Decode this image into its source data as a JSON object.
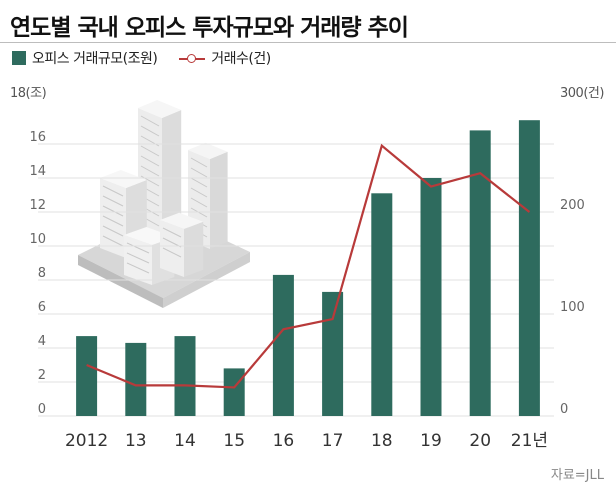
{
  "title": "연도별 국내 오피스 투자규모와 거래량 추이",
  "source": "자료=JLL",
  "colors": {
    "bar": "#2e6b5e",
    "line": "#b83a3a",
    "grid": "#e1e1e1",
    "tick_text": "#666666",
    "x_tick_text": "#333333"
  },
  "chart_data": {
    "type": "bar",
    "categories": [
      "2012",
      "13",
      "14",
      "15",
      "16",
      "17",
      "18",
      "19",
      "20",
      "21년"
    ],
    "left_axis": {
      "unit_label": "18(조)",
      "ylim": [
        0,
        18
      ],
      "ticks": [
        0,
        2,
        4,
        6,
        8,
        10,
        12,
        14,
        16
      ]
    },
    "right_axis": {
      "unit_label": "300(건)",
      "ylim": [
        0,
        300
      ],
      "ticks": [
        0,
        100,
        200
      ]
    },
    "series": [
      {
        "name": "오피스 거래규모(조원)",
        "type": "bar",
        "axis": "left",
        "values": [
          4.7,
          4.3,
          4.7,
          2.8,
          8.3,
          7.3,
          13.1,
          14.0,
          16.8,
          17.4
        ]
      },
      {
        "name": "거래수(건)",
        "type": "line",
        "axis": "right",
        "values": [
          50,
          30,
          30,
          28,
          85,
          95,
          265,
          225,
          238,
          200
        ]
      }
    ],
    "grid": true,
    "legend_position": "top-left"
  }
}
